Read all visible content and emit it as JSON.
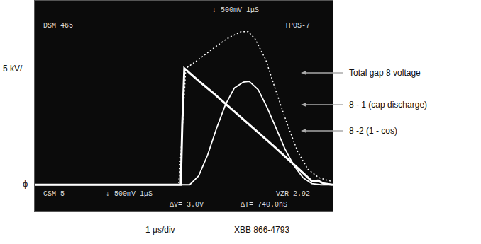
{
  "chart_data": {
    "type": "line",
    "x_label": "1 μs/div",
    "y_label": "5 kV/",
    "zero_label": "ϕ",
    "source": "XBB 866-4793",
    "screen_top": [
      "DSM 465",
      "↓ 500mV 1μS",
      "TPOS-7"
    ],
    "screen_bottom": [
      "CSM 5",
      "↓ 500mV 1μS",
      "VZR-2.92",
      "ΔV= 3.0V",
      "ΔT= 740.0nS"
    ],
    "xlim": [
      0,
      10
    ],
    "ylim": [
      -4.5,
      31
    ],
    "tick_labels": false,
    "grid": false,
    "legend": "right",
    "series": [
      {
        "name": "Total gap 8 voltage",
        "color": "#ffffff",
        "line_style": "dotted",
        "x": [
          0,
          4.83,
          4.93,
          5.07,
          5.5,
          5.97,
          6.45,
          6.92,
          7.16,
          7.39,
          7.75,
          8.1,
          8.46,
          8.82,
          9.17,
          9.53,
          10
        ],
        "values": [
          0,
          0,
          7.4,
          19.6,
          21.1,
          22.9,
          24.6,
          25.8,
          25.8,
          24.6,
          21.1,
          15.7,
          10.4,
          5.6,
          2.6,
          1.2,
          0.5
        ]
      },
      {
        "name": "8 - 1 (cap discharge)",
        "color": "#ffffff",
        "line_style": "solid",
        "x": [
          0,
          4.9,
          4.95,
          5.02,
          5.5,
          6.0,
          6.5,
          7.0,
          7.5,
          8.0,
          8.5,
          9.0,
          9.3,
          9.5,
          9.7,
          10
        ],
        "values": [
          0,
          0,
          10,
          19.6,
          17.5,
          15.4,
          13.2,
          11.0,
          8.8,
          6.6,
          4.3,
          2.0,
          0.6,
          0.7,
          0.2,
          0
        ]
      },
      {
        "name": "8 -2 (1 - cos)",
        "color": "#ffffff",
        "line_style": "solid",
        "x": [
          0,
          5.2,
          5.5,
          5.8,
          6.1,
          6.4,
          6.7,
          7.0,
          7.2,
          7.5,
          7.8,
          8.1,
          8.4,
          8.7,
          9.0,
          9.3,
          9.6,
          10
        ],
        "values": [
          0,
          0,
          1.5,
          5.0,
          9.5,
          13.5,
          16.3,
          17.3,
          17.4,
          16.0,
          13.0,
          9.5,
          6.0,
          3.2,
          1.2,
          0.2,
          0,
          0
        ]
      }
    ]
  }
}
